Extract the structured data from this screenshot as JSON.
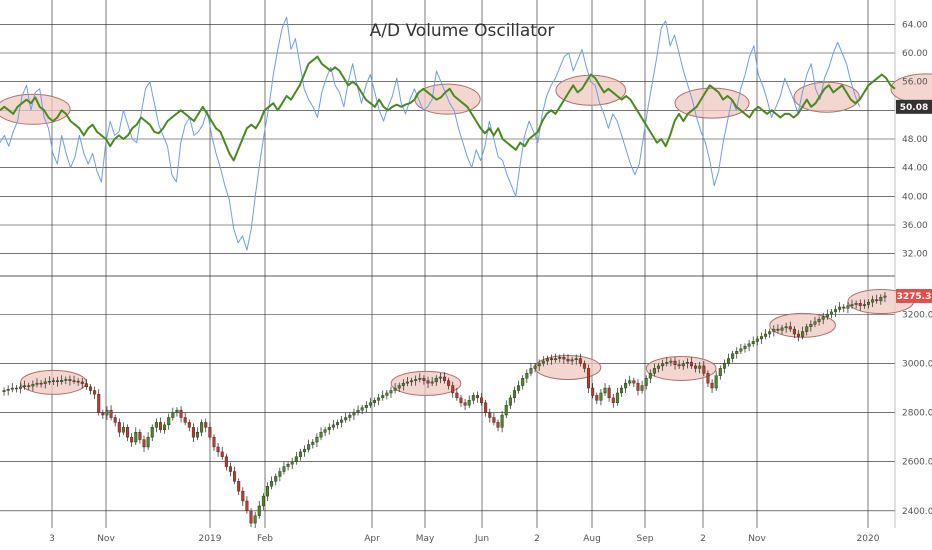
{
  "chart_data": [
    {
      "type": "line",
      "title": "A/D Volume Oscillator",
      "ylim": [
        30,
        66
      ],
      "yticks": [
        "32.00",
        "36.00",
        "40.00",
        "44.00",
        "48.00",
        "52.00",
        "56.00",
        "60.00",
        "64.00"
      ],
      "last_value_label": "50.08",
      "grid": true,
      "series": [
        {
          "color": "#4a8a1f",
          "values": [
            52.0,
            52.5,
            52.0,
            51.5,
            52.5,
            53.0,
            53.5,
            53.0,
            53.8,
            52.5,
            52.0,
            51.0,
            50.5,
            51.0,
            52.0,
            51.5,
            50.5,
            50.0,
            49.5,
            48.5,
            49.5,
            50.0,
            49.0,
            48.5,
            48.0,
            47.0,
            48.0,
            48.5,
            48.0,
            48.5,
            49.5,
            50.0,
            51.0,
            50.5,
            50.0,
            49.0,
            48.8,
            49.5,
            50.5,
            51.0,
            51.5,
            52.0,
            51.5,
            51.0,
            50.5,
            51.5,
            52.5,
            51.5,
            50.5,
            49.5,
            49.0,
            47.5,
            46.0,
            45.0,
            46.5,
            48.0,
            49.5,
            50.0,
            49.5,
            50.5,
            52.0,
            52.5,
            53.0,
            52.0,
            53.0,
            54.0,
            53.5,
            54.5,
            55.5,
            57.0,
            58.5,
            59.0,
            59.5,
            58.5,
            58.0,
            57.5,
            58.0,
            57.5,
            56.5,
            55.5,
            56.0,
            55.5,
            54.5,
            53.5,
            53.0,
            52.5,
            53.5,
            52.5,
            52.0,
            52.5,
            52.8,
            52.5,
            52.8,
            53.0,
            53.5,
            54.5,
            55.0,
            54.5,
            54.0,
            53.5,
            53.8,
            54.5,
            55.0,
            54.0,
            53.5,
            53.0,
            52.5,
            51.5,
            50.5,
            49.5,
            48.8,
            49.5,
            48.5,
            49.5,
            48.0,
            47.5,
            47.0,
            46.5,
            47.5,
            47.0,
            48.0,
            48.5,
            49.0,
            50.5,
            51.5,
            52.0,
            51.5,
            52.5,
            53.5,
            54.5,
            55.5,
            54.5,
            55.0,
            56.0,
            57.0,
            56.5,
            55.5,
            54.5,
            55.0,
            54.5,
            54.0,
            53.5,
            54.0,
            53.5,
            52.5,
            51.5,
            50.5,
            49.5,
            48.5,
            47.5,
            48.0,
            47.0,
            48.5,
            50.5,
            51.5,
            50.5,
            51.5,
            52.0,
            52.5,
            53.5,
            54.5,
            55.5,
            55.0,
            54.5,
            53.5,
            54.0,
            53.5,
            52.5,
            52.0,
            51.5,
            51.0,
            52.0,
            52.5,
            52.0,
            51.5,
            52.0,
            51.5,
            51.0,
            51.5,
            51.5,
            51.0,
            51.5,
            52.5,
            53.5,
            52.5,
            53.0,
            54.0,
            55.0,
            55.5,
            54.5,
            55.0,
            55.5,
            54.5,
            53.5,
            53.0,
            53.5,
            54.5,
            55.5,
            56.0,
            56.5,
            57.0,
            56.5,
            55.5,
            55.0
          ]
        },
        {
          "color": "#6f9ee8",
          "values": [
            47.5,
            48.5,
            47.0,
            49.0,
            50.5,
            54.0,
            55.5,
            52.0,
            54.5,
            55.0,
            51.0,
            49.5,
            46.0,
            44.5,
            48.5,
            46.0,
            44.0,
            45.5,
            48.5,
            46.0,
            44.5,
            46.0,
            43.5,
            42.0,
            47.5,
            50.5,
            48.5,
            49.0,
            52.0,
            50.0,
            48.0,
            47.5,
            51.5,
            55.0,
            56.0,
            53.0,
            50.0,
            48.5,
            47.0,
            43.0,
            42.0,
            47.5,
            50.0,
            51.0,
            48.5,
            49.0,
            50.0,
            52.0,
            48.5,
            46.0,
            44.0,
            41.5,
            39.5,
            35.5,
            33.5,
            34.5,
            32.5,
            35.5,
            40.5,
            45.0,
            49.0,
            52.5,
            57.0,
            60.5,
            63.5,
            65.0,
            60.5,
            62.0,
            58.5,
            55.0,
            53.5,
            52.5,
            51.0,
            54.5,
            56.5,
            58.0,
            55.5,
            54.5,
            52.5,
            56.0,
            58.5,
            55.5,
            53.0,
            55.5,
            57.0,
            54.5,
            52.0,
            50.5,
            52.5,
            54.0,
            56.5,
            53.0,
            51.5,
            53.5,
            55.0,
            53.5,
            52.0,
            52.5,
            53.5,
            57.5,
            56.0,
            54.5,
            53.0,
            52.0,
            49.5,
            47.5,
            45.5,
            44.0,
            46.5,
            45.0,
            47.0,
            50.5,
            48.0,
            45.5,
            45.0,
            43.0,
            41.5,
            40.0,
            44.5,
            48.5,
            50.5,
            49.0,
            47.5,
            51.5,
            54.0,
            55.5,
            56.5,
            58.0,
            59.5,
            60.0,
            57.5,
            59.0,
            60.5,
            58.0,
            56.0,
            55.5,
            53.0,
            51.5,
            49.5,
            51.5,
            50.5,
            48.5,
            46.5,
            44.5,
            43.0,
            44.5,
            48.5,
            52.5,
            56.0,
            59.5,
            63.5,
            64.5,
            61.0,
            62.5,
            60.0,
            57.5,
            55.5,
            53.5,
            51.0,
            49.0,
            47.5,
            45.0,
            41.5,
            43.5,
            47.5,
            50.5,
            53.5,
            52.0,
            55.0,
            57.0,
            59.5,
            61.0,
            57.0,
            55.5,
            53.5,
            51.0,
            52.5,
            54.0,
            56.5,
            55.0,
            53.5,
            51.5,
            54.5,
            57.0,
            58.5,
            55.0,
            53.5,
            56.5,
            58.0,
            60.0,
            61.5,
            60.0,
            58.5,
            56.0,
            54.0,
            52.5
          ]
        }
      ],
      "highlights": [
        [
          0,
          15
        ],
        [
          95,
          108
        ],
        [
          127,
          141
        ],
        [
          154,
          169
        ],
        [
          181,
          194
        ],
        [
          203,
          217
        ]
      ]
    },
    {
      "type": "candlestick",
      "ylim": [
        2330,
        3340
      ],
      "yticks": [
        "2400.0",
        "2600.0",
        "2800.0",
        "3000.0",
        "3200.0"
      ],
      "last_value_label": "3275.3",
      "grid": true,
      "up_color": "#4a8a1f",
      "down_color": "#c0392b",
      "highlights": [
        [
          5,
          19
        ],
        [
          95,
          110
        ],
        [
          130,
          144
        ],
        [
          157,
          172
        ],
        [
          187,
          201
        ],
        [
          206,
          220
        ]
      ],
      "closes": [
        2890,
        2895,
        2900,
        2898,
        2905,
        2910,
        2908,
        2915,
        2920,
        2918,
        2925,
        2928,
        2930,
        2926,
        2932,
        2935,
        2930,
        2928,
        2925,
        2918,
        2905,
        2890,
        2875,
        2800,
        2790,
        2810,
        2780,
        2760,
        2720,
        2740,
        2700,
        2680,
        2720,
        2690,
        2660,
        2700,
        2740,
        2760,
        2730,
        2750,
        2780,
        2800,
        2810,
        2780,
        2760,
        2740,
        2700,
        2720,
        2760,
        2740,
        2700,
        2660,
        2640,
        2620,
        2580,
        2560,
        2520,
        2480,
        2440,
        2400,
        2350,
        2380,
        2420,
        2460,
        2500,
        2520,
        2540,
        2560,
        2580,
        2590,
        2600,
        2620,
        2640,
        2650,
        2670,
        2680,
        2700,
        2720,
        2730,
        2740,
        2750,
        2760,
        2770,
        2780,
        2790,
        2800,
        2810,
        2820,
        2830,
        2840,
        2850,
        2860,
        2870,
        2880,
        2890,
        2900,
        2910,
        2920,
        2925,
        2930,
        2935,
        2940,
        2930,
        2920,
        2925,
        2940,
        2945,
        2930,
        2910,
        2880,
        2860,
        2840,
        2830,
        2850,
        2870,
        2860,
        2840,
        2800,
        2780,
        2760,
        2740,
        2790,
        2830,
        2860,
        2890,
        2910,
        2940,
        2960,
        2980,
        2990,
        3000,
        3010,
        3020,
        3015,
        3020,
        3025,
        3018,
        3010,
        3015,
        3020,
        3000,
        2980,
        2900,
        2870,
        2850,
        2880,
        2900,
        2860,
        2840,
        2880,
        2900,
        2920,
        2930,
        2920,
        2890,
        2910,
        2940,
        2960,
        2980,
        2990,
        3000,
        3005,
        3010,
        2995,
        2990,
        3000,
        3005,
        2990,
        2980,
        2990,
        2960,
        2920,
        2900,
        2950,
        2980,
        3000,
        3020,
        3040,
        3050,
        3060,
        3070,
        3080,
        3090,
        3100,
        3110,
        3120,
        3130,
        3140,
        3135,
        3145,
        3150,
        3140,
        3120,
        3110,
        3130,
        3150,
        3160,
        3170,
        3180,
        3190,
        3200,
        3210,
        3220,
        3230,
        3225,
        3235,
        3240,
        3245,
        3235,
        3240,
        3250,
        3260,
        3255,
        3270,
        3275
      ]
    }
  ],
  "x_labels": [
    "3",
    "Nov",
    "2019",
    "Feb",
    "Apr",
    "May",
    "Jun",
    "2",
    "Aug",
    "Sep",
    "2",
    "Nov",
    "2020"
  ],
  "colors": {
    "grid": "#222222",
    "highlight_fill": "#f0c8c0",
    "highlight_stroke": "#b0706a",
    "last_badge_osc": "#333333",
    "last_badge_price": "#e0504a"
  }
}
